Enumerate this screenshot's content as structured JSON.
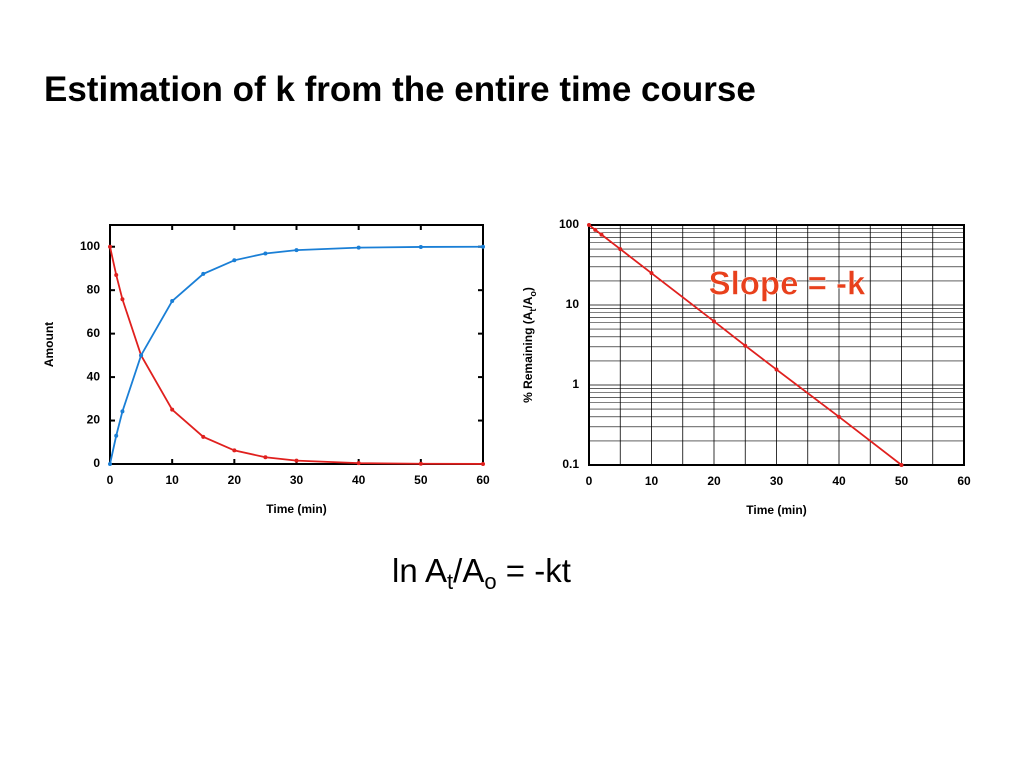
{
  "title": "Estimation of k from the entire time course",
  "equation": [
    "ln A",
    "t",
    "/A",
    "o",
    " = -kt"
  ],
  "chart_data": [
    {
      "type": "line",
      "xlabel": "Time  (min)",
      "ylabel": [
        "Amount"
      ],
      "x": [
        0,
        1,
        2,
        5,
        10,
        15,
        20,
        25,
        30,
        40,
        50,
        60
      ],
      "series": [
        {
          "color": "#e0201e",
          "values": [
            100,
            87,
            75.8,
            50,
            25,
            12.5,
            6.25,
            3.1,
            1.56,
            0.4,
            0.1,
            0.02
          ]
        },
        {
          "color": "#1a7fd6",
          "values": [
            0,
            13,
            24.2,
            50,
            75,
            87.5,
            93.75,
            96.9,
            98.44,
            99.6,
            99.9,
            99.98
          ]
        }
      ],
      "xlim": [
        0,
        60
      ],
      "xticks": [
        0,
        10,
        20,
        30,
        40,
        50,
        60
      ],
      "ylim": [
        0,
        110
      ],
      "yticks": [
        0,
        20,
        40,
        60,
        80,
        100
      ],
      "log_y": false,
      "grid": false
    },
    {
      "type": "line",
      "xlabel": "Time  (min)",
      "ylabel": [
        "% Remaining  (A",
        "t",
        "/A",
        "o",
        ")"
      ],
      "annotation": "Slope = -k",
      "annotation_color": "#e8401c",
      "x": [
        0,
        1,
        2,
        5,
        10,
        20,
        25,
        30,
        40,
        50
      ],
      "series": [
        {
          "color": "#e0201e",
          "values": [
            100,
            87,
            75.8,
            50,
            25,
            6.25,
            3.1,
            1.56,
            0.4,
            0.1
          ]
        }
      ],
      "xlim": [
        0,
        60
      ],
      "xticks": [
        0,
        10,
        20,
        30,
        40,
        50,
        60
      ],
      "ylim": [
        0.1,
        100
      ],
      "yticks": [
        0.1,
        1,
        10,
        100
      ],
      "log_y": true,
      "grid": true
    }
  ]
}
